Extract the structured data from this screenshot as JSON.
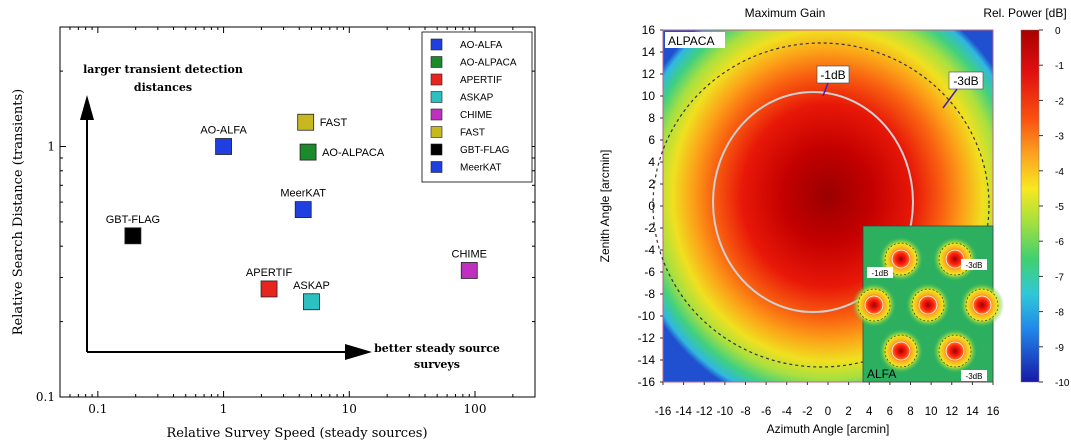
{
  "chart_data": [
    {
      "type": "scatter",
      "xlabel": "Relative Survey Speed  (steady sources)",
      "ylabel": "Relative Search Distance  (transients)",
      "x_scale": "log",
      "y_scale": "log",
      "xlim": [
        0.05,
        300
      ],
      "ylim": [
        0.1,
        3.0
      ],
      "x_ticks": [
        0.1,
        1,
        10,
        100
      ],
      "x_tick_labels": [
        "0.1",
        "1",
        "10",
        "100"
      ],
      "y_ticks": [
        0.1,
        1
      ],
      "y_tick_labels": [
        "0.1",
        "1"
      ],
      "points": [
        {
          "label": "AO-ALFA",
          "x": 1.0,
          "y": 1.0,
          "color": "#1f3fe0"
        },
        {
          "label": "AO-ALPACA",
          "x": 4.7,
          "y": 0.95,
          "color": "#1a8a2a"
        },
        {
          "label": "APERTIF",
          "x": 2.3,
          "y": 0.27,
          "color": "#e8241f"
        },
        {
          "label": "ASKAP",
          "x": 5.0,
          "y": 0.24,
          "color": "#2cc0c0"
        },
        {
          "label": "CHIME",
          "x": 90,
          "y": 0.32,
          "color": "#c030c0"
        },
        {
          "label": "FAST",
          "x": 4.5,
          "y": 1.25,
          "color": "#c8b820"
        },
        {
          "label": "GBT-FLAG",
          "x": 0.19,
          "y": 0.44,
          "color": "#000000"
        },
        {
          "label": "MeerKAT",
          "x": 4.3,
          "y": 0.56,
          "color": "#1f3fe0"
        }
      ],
      "legend": {
        "placement": "top-right",
        "entries": [
          {
            "name": "AO-ALFA",
            "color": "#1f3fe0"
          },
          {
            "name": "AO-ALPACA",
            "color": "#1a8a2a"
          },
          {
            "name": "APERTIF",
            "color": "#e8241f"
          },
          {
            "name": "ASKAP",
            "color": "#2cc0c0"
          },
          {
            "name": "CHIME",
            "color": "#c030c0"
          },
          {
            "name": "FAST",
            "color": "#c8b820"
          },
          {
            "name": "GBT-FLAG",
            "color": "#000000"
          },
          {
            "name": "MeerKAT",
            "color": "#1f3fe0"
          }
        ]
      },
      "annotations": {
        "vertical_arrow_text_line1": "larger transient detection",
        "vertical_arrow_text_line2": "distances",
        "horizontal_arrow_text_line1": "better steady source",
        "horizontal_arrow_text_line2": "surveys"
      }
    },
    {
      "type": "heatmap",
      "title": "Maximum Gain",
      "colorbar_label": "Rel. Power [dB]",
      "xlabel": "Azimuth Angle [arcmin]",
      "ylabel": "Zenith Angle [arcmin]",
      "xlim": [
        -16,
        16
      ],
      "ylim": [
        -16,
        16
      ],
      "x_ticks": [
        -16,
        -14,
        -12,
        -10,
        -8,
        -6,
        -4,
        -2,
        0,
        2,
        4,
        6,
        8,
        10,
        12,
        14,
        16
      ],
      "y_ticks": [
        16,
        14,
        12,
        10,
        8,
        6,
        4,
        2,
        0,
        -2,
        -4,
        -6,
        -8,
        -10,
        -12,
        -14,
        -16
      ],
      "colorbar_ticks": [
        "0",
        "-1",
        "-2",
        "-3",
        "-4",
        "-5",
        "-6",
        "-7",
        "-8",
        "-9",
        "-10"
      ],
      "colorbar_range": [
        -10,
        0
      ],
      "contours": [
        {
          "label": "-1dB",
          "radius_arcmin": 10,
          "style": "solid"
        },
        {
          "label": "-3dB",
          "radius_arcmin": 14,
          "style": "dashed"
        }
      ],
      "panel_label": "ALPACA",
      "inset": {
        "panel_label": "ALFA",
        "contour_labels": [
          "-1dB",
          "-3dB",
          "-3dB"
        ]
      }
    }
  ]
}
